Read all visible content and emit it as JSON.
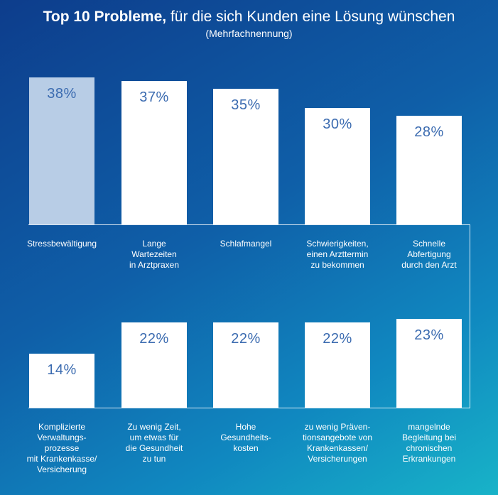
{
  "header": {
    "title_bold": "Top 10 Probleme,",
    "title_rest": " für die sich Kunden eine Lösung wünschen",
    "subtitle": "(Mehrfachnennung)"
  },
  "colors": {
    "bar": "#ffffff",
    "bar_highlight": "#b8cde6",
    "value_text": "#3b6bb0"
  },
  "chart_data": {
    "type": "bar",
    "unit": "%",
    "ylim": [
      0,
      40
    ],
    "rows": [
      {
        "categories": [
          "Stressbewältigung",
          "Lange\nWartezeiten\nin Arztpraxen",
          "Schlafmangel",
          "Schwierigkeiten,\neinen Arzttermin\nzu bekommen",
          "Schnelle\nAbfertigung\ndurch den Arzt"
        ],
        "values": [
          38,
          37,
          35,
          30,
          28
        ],
        "labels": [
          "38%",
          "37%",
          "35%",
          "30%",
          "28%"
        ]
      },
      {
        "categories": [
          "Komplizierte\nVerwaltungs-\nprozesse\nmit Krankenkasse/\nVersicherung",
          "Zu wenig Zeit,\num etwas für\ndie Gesundheit\nzu tun",
          "Hohe\nGesundheits-\nkosten",
          "zu wenig Präven-\ntionsangebote von\nKrankenkassen/\nVersicherungen",
          "mangelnde\nBegleitung bei\nchronischen\nErkrankungen"
        ],
        "values": [
          14,
          22,
          22,
          22,
          23
        ],
        "labels": [
          "14%",
          "22%",
          "22%",
          "22%",
          "23%"
        ]
      }
    ],
    "highlight": {
      "row": 0,
      "index": 0
    }
  }
}
